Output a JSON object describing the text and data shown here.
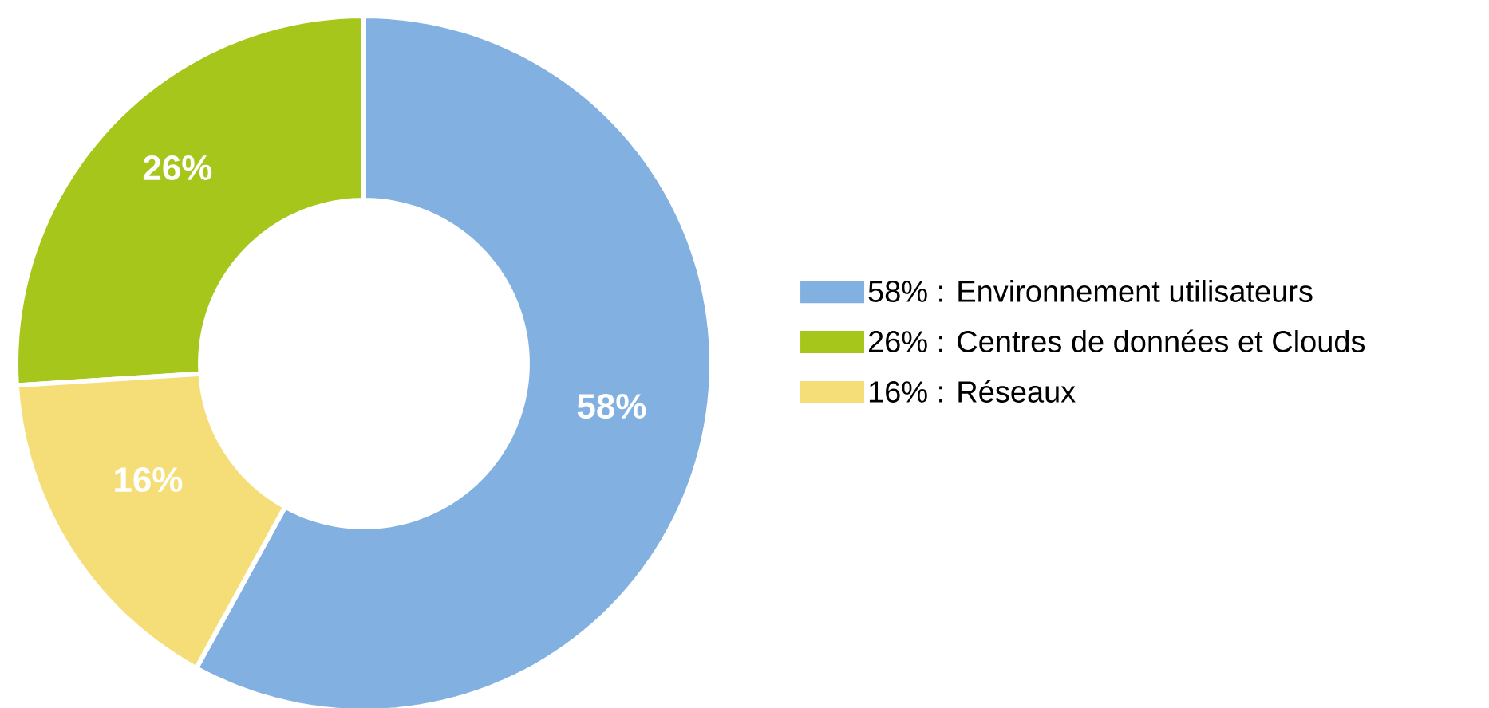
{
  "chart_data": {
    "type": "donut",
    "categories": [
      "58% : Environnement utilisateurs",
      "26% : Centres de données et Clouds",
      "16% : Réseaux"
    ],
    "values": [
      58,
      26,
      16
    ],
    "value_labels": [
      "58%",
      "26%",
      "16%"
    ],
    "colors": [
      "#82b1e1",
      "#a7c61c",
      "#f5de77"
    ],
    "legend": "right"
  }
}
